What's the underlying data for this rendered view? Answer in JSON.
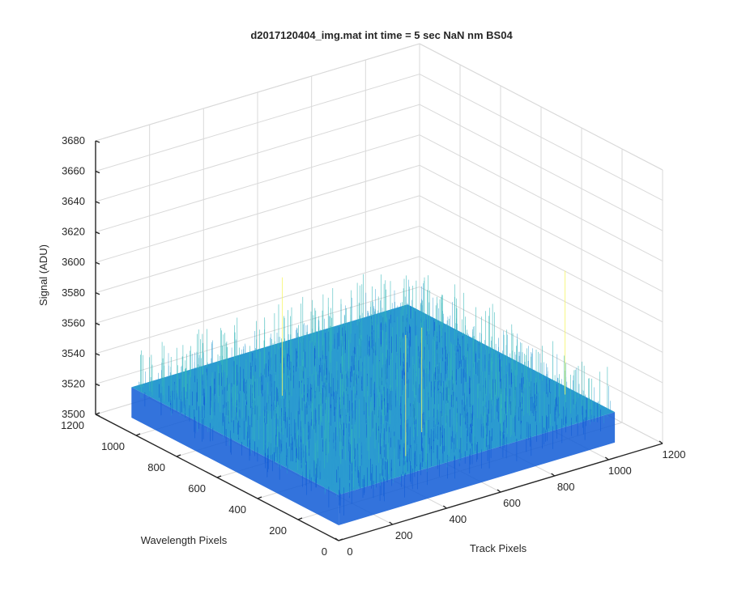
{
  "chart_data": {
    "type": "surface",
    "title": "d2017120404_img.mat int time = 5 sec  NaN nm BS04",
    "xlabel": "Track Pixels",
    "ylabel": "Wavelength Pixels",
    "zlabel": "Signal (ADU)",
    "xlim": [
      0,
      1200
    ],
    "ylim": [
      0,
      1200
    ],
    "zlim": [
      3500,
      3680
    ],
    "x_ticks": [
      "0",
      "200",
      "400",
      "600",
      "800",
      "1000",
      "1200"
    ],
    "y_ticks": [
      "0",
      "200",
      "400",
      "600",
      "800",
      "1000",
      "1200"
    ],
    "z_ticks": [
      "3500",
      "3520",
      "3540",
      "3560",
      "3580",
      "3600",
      "3620",
      "3640",
      "3660",
      "3680"
    ],
    "data_x_range": [
      1,
      1024
    ],
    "data_y_range": [
      1,
      1024
    ],
    "data_summary": {
      "mean_signal": 3530,
      "typical_min": 3510,
      "typical_max": 3560,
      "peak_max": 3625
    },
    "grid": true,
    "colormap": "parula",
    "colors": {
      "low": "#0f5bd6",
      "mid": "#2b9bd0",
      "high": "#33b7b8",
      "peak": "#f5f56a"
    }
  }
}
